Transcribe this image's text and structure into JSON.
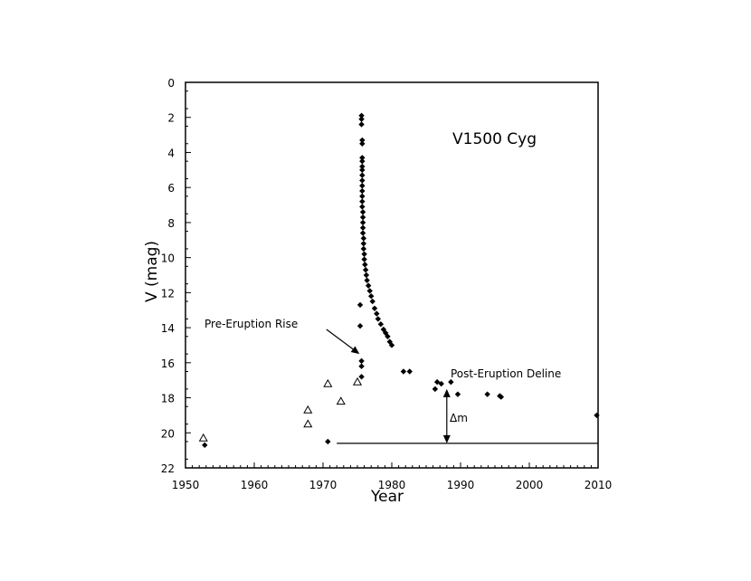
{
  "chart_data": {
    "type": "scatter",
    "title": "V1500 Cyg",
    "xlabel": "Year",
    "ylabel": "V (mag)",
    "xlim": [
      1950,
      2010
    ],
    "ylim": [
      0,
      22
    ],
    "y_inverted": true,
    "grid": false,
    "x_ticks": [
      "1950",
      "1960",
      "1970",
      "1980",
      "1990",
      "2000",
      "2010"
    ],
    "y_ticks": [
      "0",
      "2",
      "4",
      "6",
      "8",
      "10",
      "12",
      "14",
      "16",
      "18",
      "20",
      "22"
    ],
    "series": [
      {
        "marker": "filled-diamond",
        "color": "#000000",
        "points": [
          [
            1952.8,
            20.7
          ],
          [
            1970.7,
            20.5
          ],
          [
            1975.6,
            1.9
          ],
          [
            1975.6,
            2.1
          ],
          [
            1975.6,
            2.4
          ],
          [
            1975.7,
            3.3
          ],
          [
            1975.7,
            3.5
          ],
          [
            1975.7,
            4.3
          ],
          [
            1975.7,
            4.5
          ],
          [
            1975.7,
            4.8
          ],
          [
            1975.7,
            5.0
          ],
          [
            1975.7,
            5.3
          ],
          [
            1975.7,
            5.6
          ],
          [
            1975.7,
            5.9
          ],
          [
            1975.7,
            6.2
          ],
          [
            1975.7,
            6.5
          ],
          [
            1975.7,
            6.8
          ],
          [
            1975.7,
            7.1
          ],
          [
            1975.8,
            7.4
          ],
          [
            1975.8,
            7.7
          ],
          [
            1975.8,
            8.0
          ],
          [
            1975.8,
            8.3
          ],
          [
            1975.8,
            8.6
          ],
          [
            1975.9,
            8.9
          ],
          [
            1975.9,
            9.2
          ],
          [
            1975.9,
            9.5
          ],
          [
            1976.0,
            9.8
          ],
          [
            1976.0,
            10.1
          ],
          [
            1976.1,
            10.4
          ],
          [
            1976.2,
            10.7
          ],
          [
            1976.3,
            11.0
          ],
          [
            1976.4,
            11.3
          ],
          [
            1976.6,
            11.6
          ],
          [
            1976.8,
            11.9
          ],
          [
            1977.0,
            12.2
          ],
          [
            1977.2,
            12.5
          ],
          [
            1977.5,
            12.9
          ],
          [
            1977.8,
            13.2
          ],
          [
            1978.0,
            13.5
          ],
          [
            1978.4,
            13.8
          ],
          [
            1978.8,
            14.1
          ],
          [
            1979.1,
            14.3
          ],
          [
            1979.4,
            14.5
          ],
          [
            1979.7,
            14.8
          ],
          [
            1980.0,
            15.0
          ],
          [
            1975.4,
            12.7
          ],
          [
            1975.4,
            13.9
          ],
          [
            1975.6,
            15.9
          ],
          [
            1975.6,
            16.2
          ],
          [
            1975.6,
            16.8
          ],
          [
            1981.7,
            16.5
          ],
          [
            1982.6,
            16.5
          ],
          [
            1986.6,
            17.1
          ],
          [
            1987.2,
            17.2
          ],
          [
            1988.6,
            17.1
          ],
          [
            1986.3,
            17.5
          ],
          [
            1989.6,
            17.8
          ],
          [
            1993.9,
            17.8
          ],
          [
            1995.7,
            17.9
          ],
          [
            1995.9,
            17.95
          ],
          [
            2009.8,
            19.0
          ]
        ]
      },
      {
        "marker": "open-triangle",
        "color": "#000000",
        "points": [
          [
            1952.6,
            20.3
          ],
          [
            1967.8,
            18.7
          ],
          [
            1967.8,
            19.5
          ],
          [
            1970.7,
            17.2
          ],
          [
            1972.6,
            18.2
          ],
          [
            1975.0,
            17.1
          ]
        ]
      }
    ],
    "annotations": {
      "pre_eruption": "Pre-Eruption Rise",
      "post_eruption": "Post-Eruption Deline",
      "delta_m": "Δm",
      "baseline_y": 20.6,
      "baseline_x": [
        1972.0,
        2010.0
      ],
      "delta_x": 1988.0,
      "delta_y": [
        17.5,
        20.6
      ],
      "pre_arrow_from": [
        1970.5,
        14.1
      ],
      "pre_arrow_to": [
        1975.3,
        15.5
      ]
    }
  }
}
